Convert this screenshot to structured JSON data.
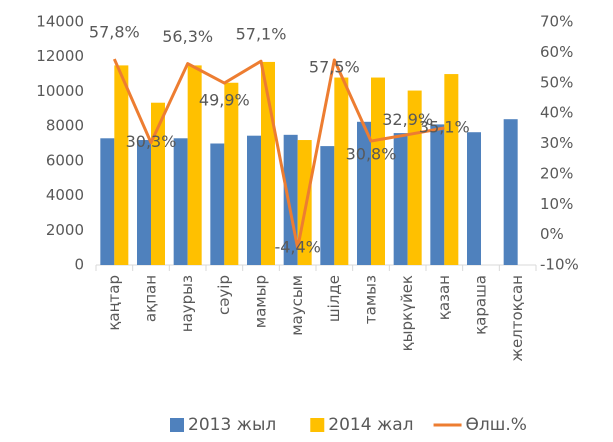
{
  "chart_data": {
    "type": "bar_line",
    "categories": [
      "қаңтар",
      "ақпан",
      "наурыз",
      "сәуір",
      "мамыр",
      "маусым",
      "шілде",
      "тамыз",
      "қыркүйек",
      "қазан",
      "қараша",
      "желтоқсан"
    ],
    "series": [
      {
        "name": "2013 жыл",
        "type": "bar",
        "color": "#4f81bd",
        "values": [
          7300,
          7200,
          7300,
          7000,
          7450,
          7500,
          6850,
          8250,
          7600,
          8100,
          7650,
          8400
        ]
      },
      {
        "name": "2014 жал",
        "type": "bar",
        "color": "#ffc000",
        "values": [
          11500,
          9350,
          11500,
          10500,
          11700,
          7200,
          10800,
          10800,
          10050,
          11000,
          null,
          null
        ]
      },
      {
        "name": "Өлш.%",
        "type": "line",
        "axis": "y2",
        "color": "#ed7d31",
        "values": [
          57.8,
          30.3,
          56.3,
          49.9,
          57.1,
          -4.4,
          57.5,
          30.8,
          32.9,
          35.1,
          null,
          null
        ],
        "value_labels": [
          "57,8%",
          "30,3%",
          "56,3%",
          "49,9%",
          "57,1%",
          "-4,4%",
          "57,5%",
          "30,8%",
          "32,9%",
          "35,1%",
          null,
          null
        ]
      }
    ],
    "ylim": [
      0,
      14000
    ],
    "yticks": [
      0,
      2000,
      4000,
      6000,
      8000,
      10000,
      12000,
      14000
    ],
    "y2lim": [
      -10,
      70
    ],
    "y2ticks": [
      {
        "value": -10,
        "label": "-10%"
      },
      {
        "value": 0,
        "label": "0%"
      },
      {
        "value": 10,
        "label": "10%"
      },
      {
        "value": 20,
        "label": "20%"
      },
      {
        "value": 30,
        "label": "30%"
      },
      {
        "value": 40,
        "label": "40%"
      },
      {
        "value": 50,
        "label": "50%"
      },
      {
        "value": 60,
        "label": "60%"
      },
      {
        "value": 70,
        "label": "70%"
      }
    ],
    "legend": "bottom",
    "grid": false
  }
}
